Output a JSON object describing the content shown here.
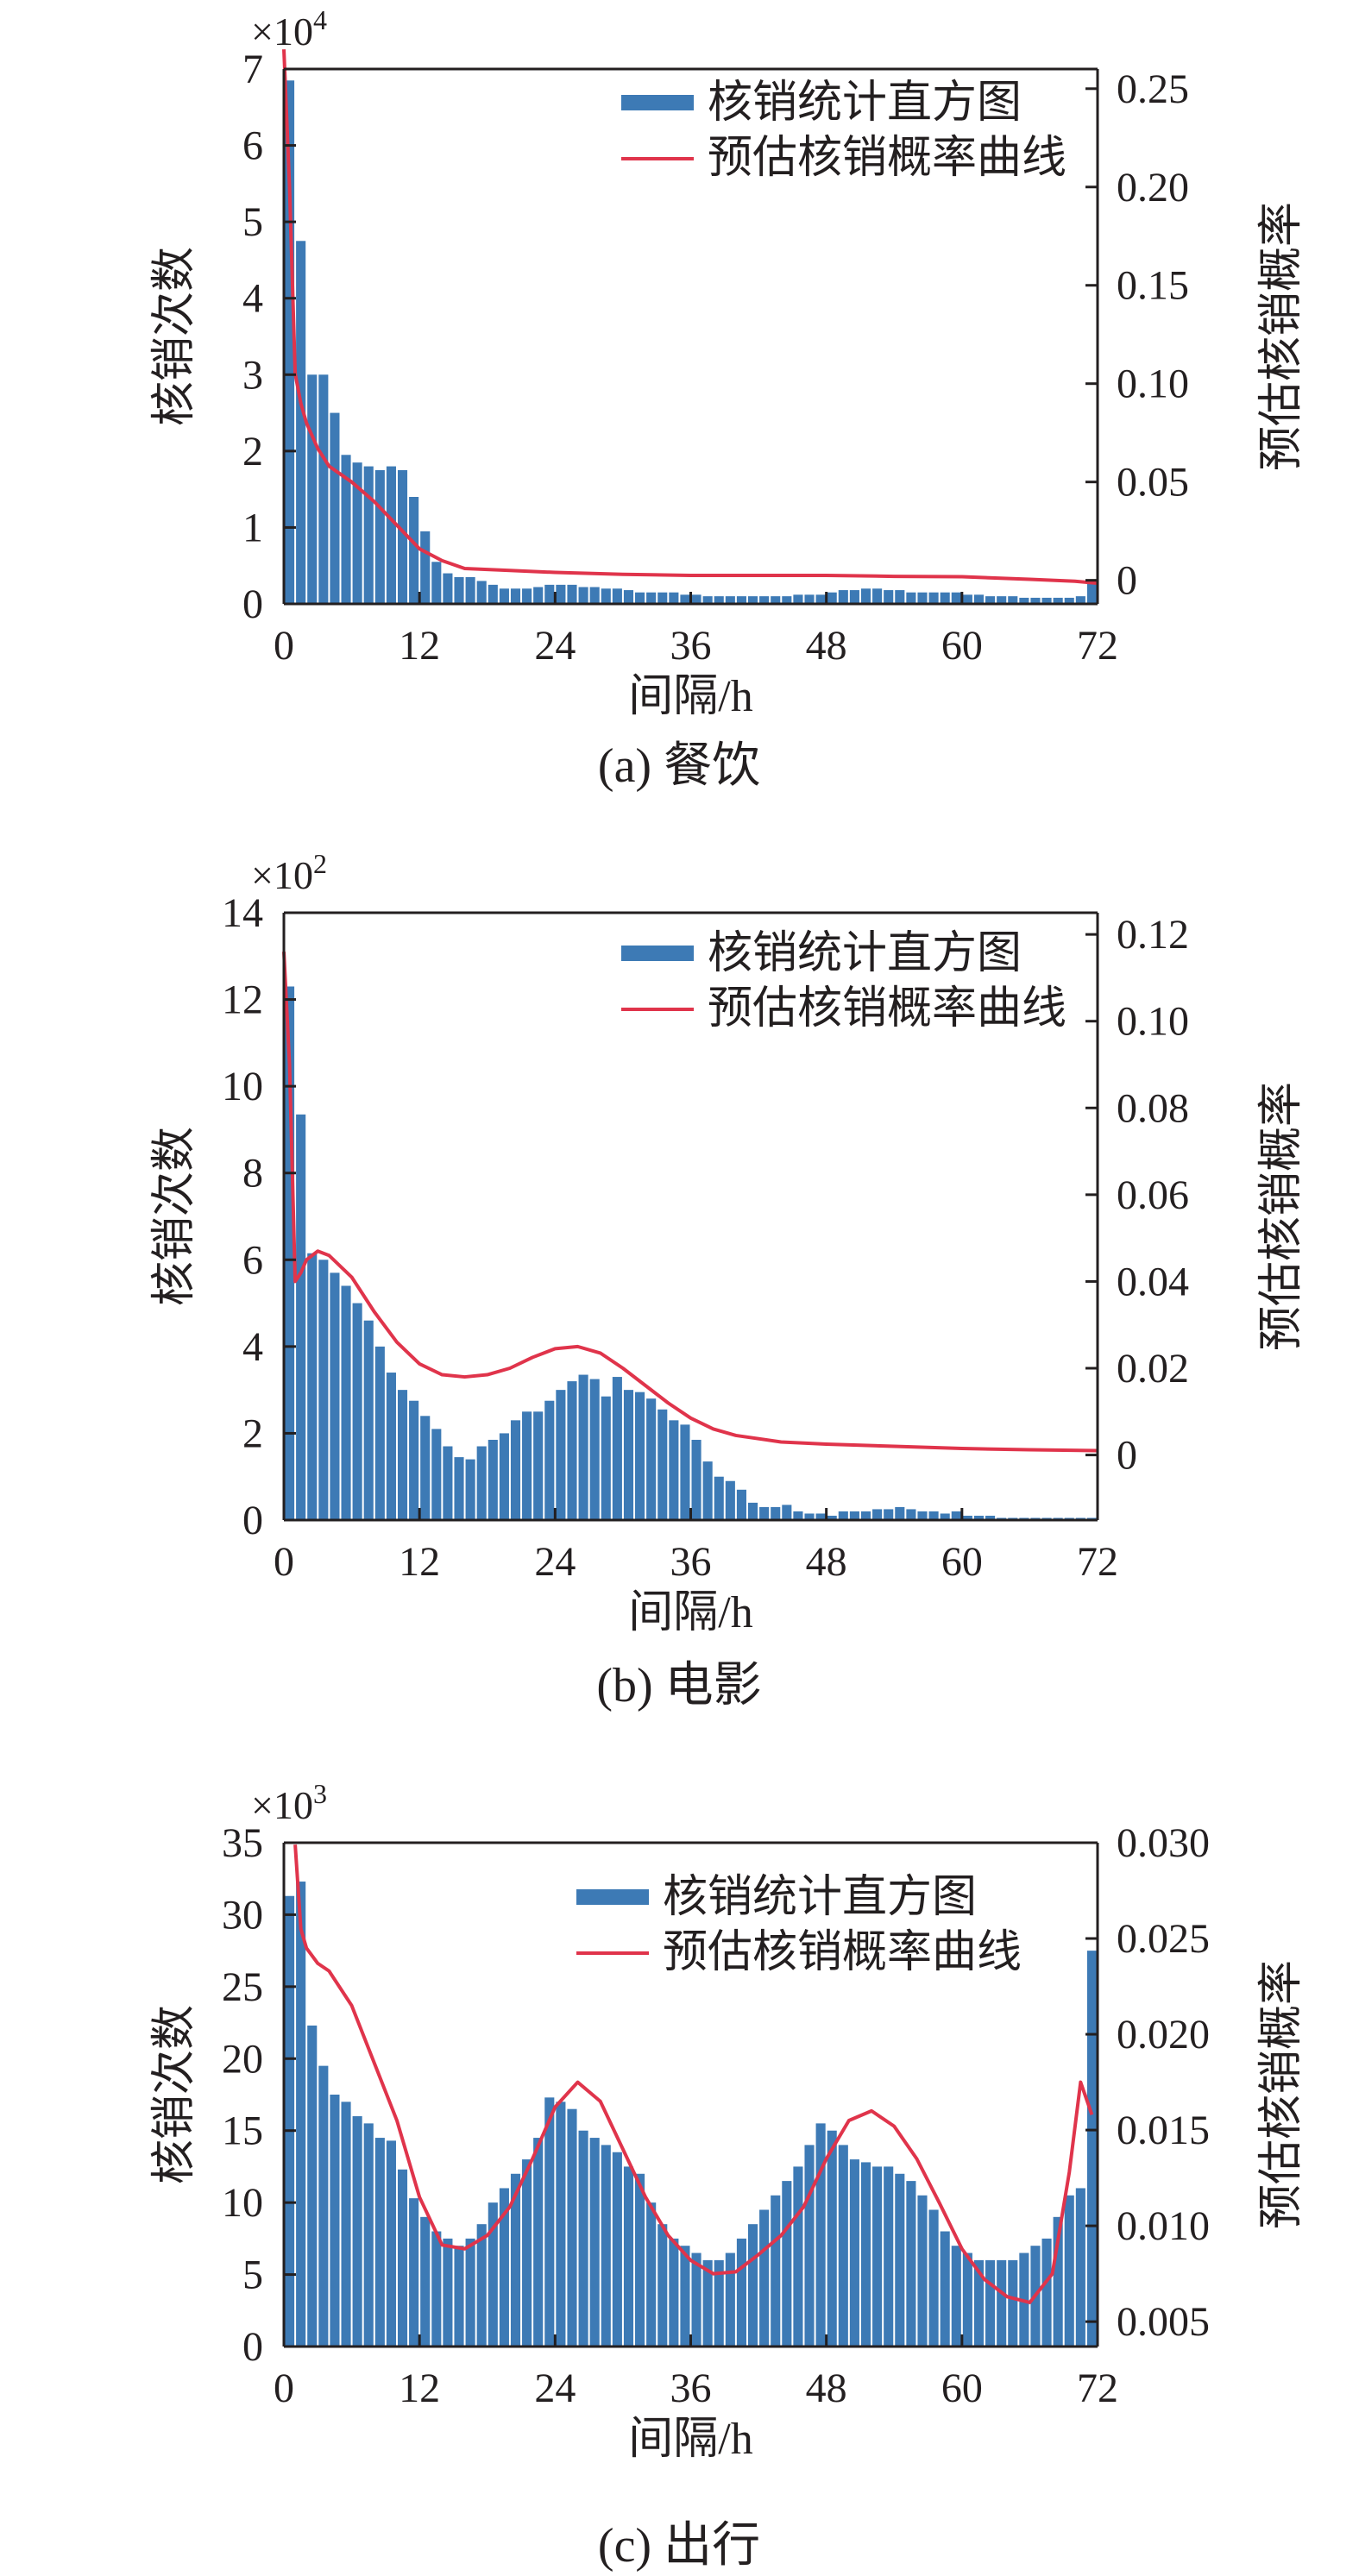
{
  "colors": {
    "bar": "#3d7ab5",
    "bar_edge": "#ffffff",
    "curve": "#e0344b",
    "axis": "#231f20"
  },
  "chart_data": [
    {
      "type": "bar",
      "panel_label": "(a) 餐饮",
      "xlabel": "间隔/h",
      "ylabel": "核销次数",
      "y2label": "预估核销概率",
      "multiplier_base": "×10",
      "multiplier_exp": "4",
      "xlim": [
        0,
        72
      ],
      "x_ticks": [
        "0",
        "12",
        "24",
        "36",
        "48",
        "60",
        "72"
      ],
      "ylim": [
        0,
        7
      ],
      "y_ticks": [
        "0",
        "1",
        "2",
        "3",
        "4",
        "5",
        "6",
        "7"
      ],
      "y2lim": [
        -0.012,
        0.26
      ],
      "y2_ticks": [
        {
          "value": 0,
          "label": "0"
        },
        {
          "value": 0.05,
          "label": "0.05"
        },
        {
          "value": 0.1,
          "label": "0.10"
        },
        {
          "value": 0.15,
          "label": "0.15"
        },
        {
          "value": 0.2,
          "label": "0.20"
        },
        {
          "value": 0.25,
          "label": "0.25"
        }
      ],
      "legend": [
        "核销统计直方图",
        "预估核销概率曲线"
      ],
      "legend_position": "top-right",
      "bar_x": [
        0.5,
        1.5,
        2.5,
        3.5,
        4.5,
        5.5,
        6.5,
        7.5,
        8.5,
        9.5,
        10.5,
        11.5,
        12.5,
        13.5,
        14.5,
        15.5,
        16.5,
        17.5,
        18.5,
        19.5,
        20.5,
        21.5,
        22.5,
        23.5,
        24.5,
        25.5,
        26.5,
        27.5,
        28.5,
        29.5,
        30.5,
        31.5,
        32.5,
        33.5,
        34.5,
        35.5,
        36.5,
        37.5,
        38.5,
        39.5,
        40.5,
        41.5,
        42.5,
        43.5,
        44.5,
        45.5,
        46.5,
        47.5,
        48.5,
        49.5,
        50.5,
        51.5,
        52.5,
        53.5,
        54.5,
        55.5,
        56.5,
        57.5,
        58.5,
        59.5,
        60.5,
        61.5,
        62.5,
        63.5,
        64.5,
        65.5,
        66.5,
        67.5,
        68.5,
        69.5,
        70.5,
        71.5
      ],
      "bar_values": [
        6.85,
        4.75,
        3.0,
        3.0,
        2.5,
        1.95,
        1.85,
        1.8,
        1.75,
        1.8,
        1.75,
        1.4,
        0.95,
        0.55,
        0.4,
        0.35,
        0.35,
        0.3,
        0.25,
        0.2,
        0.2,
        0.2,
        0.22,
        0.25,
        0.25,
        0.25,
        0.22,
        0.22,
        0.2,
        0.2,
        0.18,
        0.15,
        0.15,
        0.15,
        0.15,
        0.12,
        0.12,
        0.1,
        0.1,
        0.1,
        0.1,
        0.1,
        0.1,
        0.1,
        0.1,
        0.12,
        0.12,
        0.12,
        0.15,
        0.18,
        0.18,
        0.2,
        0.2,
        0.18,
        0.18,
        0.15,
        0.15,
        0.15,
        0.15,
        0.15,
        0.12,
        0.12,
        0.1,
        0.1,
        0.1,
        0.08,
        0.08,
        0.08,
        0.08,
        0.08,
        0.1,
        0.3
      ],
      "curve_x": [
        0,
        0.5,
        1,
        1.5,
        2,
        3,
        4,
        6,
        8,
        10,
        12,
        14,
        16,
        20,
        24,
        30,
        36,
        42,
        48,
        54,
        60,
        66,
        70,
        72
      ],
      "curve_y": [
        0.27,
        0.2,
        0.105,
        0.09,
        0.08,
        0.067,
        0.058,
        0.05,
        0.04,
        0.028,
        0.016,
        0.01,
        0.006,
        0.005,
        0.004,
        0.003,
        0.0025,
        0.0025,
        0.0025,
        0.002,
        0.0018,
        0.0005,
        -0.0005,
        -0.0015
      ]
    },
    {
      "type": "bar",
      "panel_label": "(b) 电影",
      "xlabel": "间隔/h",
      "ylabel": "核销次数",
      "y2label": "预估核销概率",
      "multiplier_base": "×10",
      "multiplier_exp": "2",
      "xlim": [
        0,
        72
      ],
      "x_ticks": [
        "0",
        "12",
        "24",
        "36",
        "48",
        "60",
        "72"
      ],
      "ylim": [
        0,
        14
      ],
      "y_ticks": [
        "0",
        "2",
        "4",
        "6",
        "8",
        "10",
        "12",
        "14"
      ],
      "y2lim": [
        -0.015,
        0.125
      ],
      "y2_ticks": [
        {
          "value": 0,
          "label": "0"
        },
        {
          "value": 0.02,
          "label": "0.02"
        },
        {
          "value": 0.04,
          "label": "0.04"
        },
        {
          "value": 0.06,
          "label": "0.06"
        },
        {
          "value": 0.08,
          "label": "0.08"
        },
        {
          "value": 0.1,
          "label": "0.10"
        },
        {
          "value": 0.12,
          "label": "0.12"
        }
      ],
      "legend": [
        "核销统计直方图",
        "预估核销概率曲线"
      ],
      "legend_position": "top-right",
      "bar_x": [
        0.5,
        1.5,
        2.5,
        3.5,
        4.5,
        5.5,
        6.5,
        7.5,
        8.5,
        9.5,
        10.5,
        11.5,
        12.5,
        13.5,
        14.5,
        15.5,
        16.5,
        17.5,
        18.5,
        19.5,
        20.5,
        21.5,
        22.5,
        23.5,
        24.5,
        25.5,
        26.5,
        27.5,
        28.5,
        29.5,
        30.5,
        31.5,
        32.5,
        33.5,
        34.5,
        35.5,
        36.5,
        37.5,
        38.5,
        39.5,
        40.5,
        41.5,
        42.5,
        43.5,
        44.5,
        45.5,
        46.5,
        47.5,
        48.5,
        49.5,
        50.5,
        51.5,
        52.5,
        53.5,
        54.5,
        55.5,
        56.5,
        57.5,
        58.5,
        59.5,
        60.5,
        61.5,
        62.5,
        63.5,
        64.5,
        65.5,
        66.5,
        67.5,
        68.5,
        69.5,
        70.5,
        71.5
      ],
      "bar_values": [
        12.3,
        9.35,
        6.15,
        6.0,
        5.7,
        5.4,
        5.0,
        4.6,
        4.0,
        3.4,
        3.0,
        2.75,
        2.4,
        2.1,
        1.7,
        1.45,
        1.4,
        1.7,
        1.85,
        2.0,
        2.3,
        2.5,
        2.5,
        2.75,
        3.0,
        3.2,
        3.35,
        3.25,
        2.85,
        3.3,
        3.0,
        2.95,
        2.8,
        2.55,
        2.3,
        2.2,
        1.85,
        1.35,
        1.0,
        0.9,
        0.7,
        0.4,
        0.3,
        0.3,
        0.35,
        0.2,
        0.15,
        0.15,
        0.1,
        0.2,
        0.2,
        0.2,
        0.25,
        0.25,
        0.3,
        0.25,
        0.2,
        0.2,
        0.15,
        0.2,
        0.1,
        0.1,
        0.1,
        0.05,
        0.05,
        0.05,
        0.05,
        0.05,
        0.05,
        0.05,
        0.05,
        0.05
      ],
      "curve_x": [
        0,
        0.5,
        1,
        1.5,
        2,
        3,
        4,
        6,
        8,
        10,
        12,
        14,
        16,
        18,
        20,
        22,
        24,
        26,
        28,
        30,
        32,
        34,
        36,
        38,
        40,
        44,
        48,
        54,
        60,
        66,
        72
      ],
      "curve_y": [
        0.116,
        0.09,
        0.04,
        0.042,
        0.045,
        0.047,
        0.046,
        0.041,
        0.033,
        0.026,
        0.021,
        0.0185,
        0.018,
        0.0185,
        0.02,
        0.0225,
        0.0245,
        0.025,
        0.0235,
        0.02,
        0.016,
        0.012,
        0.0085,
        0.006,
        0.0045,
        0.003,
        0.0025,
        0.002,
        0.0015,
        0.0012,
        0.001
      ]
    },
    {
      "type": "bar",
      "panel_label": "(c) 出行",
      "xlabel": "间隔/h",
      "ylabel": "核销次数",
      "y2label": "预估核销概率",
      "multiplier_base": "×10",
      "multiplier_exp": "3",
      "xlim": [
        0,
        72
      ],
      "x_ticks": [
        "0",
        "12",
        "24",
        "36",
        "48",
        "60",
        "72"
      ],
      "ylim": [
        0,
        35
      ],
      "y_ticks": [
        "0",
        "5",
        "10",
        "15",
        "20",
        "25",
        "30",
        "35"
      ],
      "y2lim": [
        0.0037,
        0.03
      ],
      "y2_ticks": [
        {
          "value": 0.005,
          "label": "0.005"
        },
        {
          "value": 0.01,
          "label": "0.010"
        },
        {
          "value": 0.015,
          "label": "0.015"
        },
        {
          "value": 0.02,
          "label": "0.020"
        },
        {
          "value": 0.025,
          "label": "0.025"
        },
        {
          "value": 0.03,
          "label": "0.030"
        }
      ],
      "legend": [
        "核销统计直方图",
        "预估核销概率曲线"
      ],
      "legend_position": "top-right",
      "bar_x": [
        0.5,
        1.5,
        2.5,
        3.5,
        4.5,
        5.5,
        6.5,
        7.5,
        8.5,
        9.5,
        10.5,
        11.5,
        12.5,
        13.5,
        14.5,
        15.5,
        16.5,
        17.5,
        18.5,
        19.5,
        20.5,
        21.5,
        22.5,
        23.5,
        24.5,
        25.5,
        26.5,
        27.5,
        28.5,
        29.5,
        30.5,
        31.5,
        32.5,
        33.5,
        34.5,
        35.5,
        36.5,
        37.5,
        38.5,
        39.5,
        40.5,
        41.5,
        42.5,
        43.5,
        44.5,
        45.5,
        46.5,
        47.5,
        48.5,
        49.5,
        50.5,
        51.5,
        52.5,
        53.5,
        54.5,
        55.5,
        56.5,
        57.5,
        58.5,
        59.5,
        60.5,
        61.5,
        62.5,
        63.5,
        64.5,
        65.5,
        66.5,
        67.5,
        68.5,
        69.5,
        70.5,
        71.5
      ],
      "bar_values": [
        31.3,
        32.3,
        22.3,
        19.5,
        17.5,
        17.0,
        16.0,
        15.5,
        14.5,
        14.3,
        12.3,
        10.3,
        9.0,
        8.0,
        7.5,
        7.0,
        7.5,
        8.5,
        10.0,
        11.0,
        12.0,
        13.0,
        14.5,
        17.3,
        17.0,
        16.5,
        15.0,
        14.5,
        14.0,
        13.5,
        12.5,
        12.0,
        10.0,
        8.5,
        7.5,
        7.0,
        6.5,
        6.0,
        6.0,
        6.5,
        7.5,
        8.5,
        9.5,
        10.5,
        11.5,
        12.5,
        14.0,
        15.5,
        15.0,
        14.0,
        13.0,
        12.8,
        12.5,
        12.5,
        12.0,
        11.5,
        10.5,
        9.5,
        8.0,
        7.0,
        6.5,
        6.0,
        6.0,
        6.0,
        6.0,
        6.5,
        7.0,
        7.5,
        9.0,
        10.5,
        11.0,
        27.5
      ],
      "curve_x": [
        1,
        1.5,
        2,
        3,
        4,
        6,
        8,
        10,
        12,
        14,
        16,
        18,
        20,
        22,
        24,
        26,
        28,
        30,
        32,
        34,
        36,
        38,
        40,
        42,
        44,
        46,
        48,
        50,
        52,
        54,
        56,
        58,
        60,
        62,
        64,
        66,
        68,
        69.5,
        70.5,
        71.5
      ],
      "curve_y": [
        0.0299,
        0.0255,
        0.0245,
        0.0237,
        0.0233,
        0.0215,
        0.0185,
        0.0155,
        0.0115,
        0.009,
        0.0088,
        0.0095,
        0.011,
        0.0135,
        0.0162,
        0.0175,
        0.0165,
        0.014,
        0.0115,
        0.0095,
        0.0082,
        0.0075,
        0.0076,
        0.0085,
        0.0095,
        0.011,
        0.0135,
        0.0155,
        0.016,
        0.0152,
        0.0135,
        0.0112,
        0.0088,
        0.0072,
        0.0063,
        0.006,
        0.0075,
        0.0128,
        0.0175,
        0.0158
      ]
    }
  ]
}
